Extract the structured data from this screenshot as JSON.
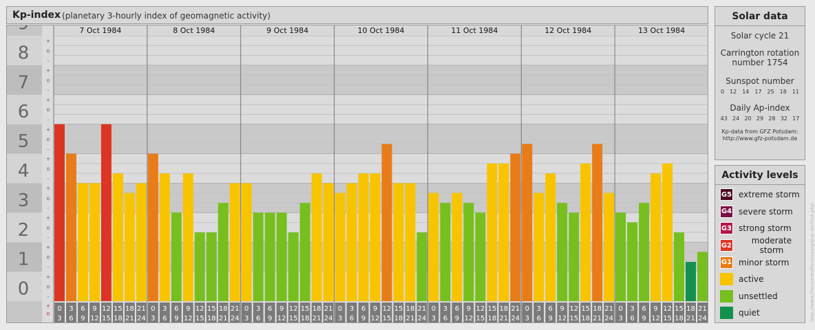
{
  "title": {
    "main": "Kp-index",
    "subtitle": "(planetary 3-hourly index of geomagnetic activity)"
  },
  "chart_data": {
    "type": "bar",
    "days": [
      "7 Oct 1984",
      "8 Oct 1984",
      "9 Oct 1984",
      "10 Oct 1984",
      "11 Oct 1984",
      "12 Oct 1984",
      "13 Oct 1984"
    ],
    "interval_start": [
      "0",
      "3",
      "6",
      "9",
      "12",
      "15",
      "18",
      "21"
    ],
    "interval_end": [
      "3",
      "6",
      "9",
      "12",
      "15",
      "18",
      "21",
      "24"
    ],
    "ylim": [
      0,
      9
    ],
    "yticks": [
      "0",
      "1",
      "2",
      "3",
      "4",
      "5",
      "6",
      "7",
      "8",
      "9"
    ],
    "minor_tick_labels": [
      "+",
      "o",
      "-"
    ],
    "kp_values": [
      [
        6,
        5,
        4,
        4,
        6,
        4.33,
        3.67,
        4
      ],
      [
        5,
        4.33,
        3,
        4.33,
        2.33,
        2.33,
        3.33,
        4
      ],
      [
        4,
        3,
        3,
        3,
        2.33,
        3.33,
        4.33,
        4
      ],
      [
        3.67,
        4,
        4.33,
        4.33,
        5.33,
        4,
        4,
        2.33
      ],
      [
        3.67,
        3.33,
        3.67,
        3.33,
        3,
        4.67,
        4.67,
        5
      ],
      [
        5.33,
        3.67,
        4.33,
        3.33,
        3,
        4.67,
        5.33,
        3.67
      ],
      [
        3,
        2.67,
        3.33,
        4.33,
        4.67,
        2.33,
        1.33,
        1.67
      ]
    ],
    "level_colors": {
      "quiet": "#13904b",
      "unsettled": "#76bf1f",
      "active": "#f8c400",
      "minor_storm": "#e87c19",
      "moderate_storm": "#dc3523",
      "strong_storm": "#b2174b",
      "severe_storm": "#7b1044",
      "extreme_storm": "#4b0d22"
    },
    "grid": true
  },
  "solar": {
    "title": "Solar data",
    "cycle": "Solar cycle 21",
    "carrington_line1": "Carrington rotation",
    "carrington_line2": "number 1754",
    "sunspot_label": "Sunspot number",
    "sunspot_values": [
      "0",
      "12",
      "14",
      "17",
      "25",
      "18",
      "11"
    ],
    "ap_label": "Daily Ap-index",
    "ap_values": [
      "43",
      "24",
      "20",
      "29",
      "28",
      "32",
      "17"
    ],
    "source_line1": "Kp-data from GFZ Potsdam:",
    "source_line2": "http://www.gfz-potsdam.de"
  },
  "activity": {
    "title": "Activity levels",
    "levels": [
      {
        "code": "G5",
        "label": "extreme storm",
        "color": "#4b0d22"
      },
      {
        "code": "G4",
        "label": "severe storm",
        "color": "#7b1044"
      },
      {
        "code": "G3",
        "label": "strong storm",
        "color": "#b2174b"
      },
      {
        "code": "G2",
        "label": "moderate storm",
        "color": "#dc3523"
      },
      {
        "code": "G1",
        "label": "minor storm",
        "color": "#e87c19"
      },
      {
        "code": "",
        "label": "active",
        "color": "#f8c400"
      },
      {
        "code": "",
        "label": "unsettled",
        "color": "#76bf1f"
      },
      {
        "code": "",
        "label": "quiet",
        "color": "#13904b"
      }
    ]
  },
  "watermark": "http://www.theusereuflerstaaurgajup.archive.php"
}
